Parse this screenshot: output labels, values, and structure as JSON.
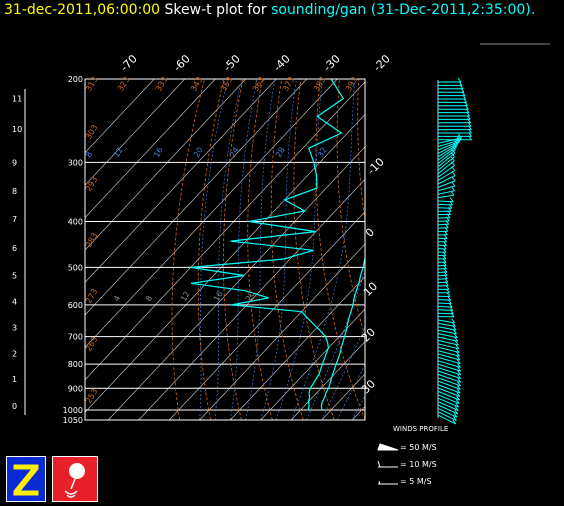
{
  "header": {
    "date": "31-dec-2011,06:00:00",
    "middle": "Skew-t plot for",
    "site": "sounding/gan",
    "obs_time": "(31-Dec-2011,2:35:00)."
  },
  "legend": {
    "title": "WINDS PROFILE",
    "items": [
      "= 50 M/S",
      "= 10 M/S",
      "= 5 M/S"
    ]
  },
  "chart_data": {
    "type": "skew-t",
    "pressure_levels": [
      "200",
      "300",
      "400",
      "500",
      "600",
      "700",
      "800",
      "900",
      "1000",
      "1050"
    ],
    "height_ticks": [
      "11",
      "10",
      "9",
      "8",
      "7",
      "6",
      "5",
      "4",
      "3",
      "2",
      "1",
      "0"
    ],
    "temperature_ticks_top": [
      "-70",
      "-60",
      "-50",
      "-40",
      "-30",
      "-20"
    ],
    "temperature_ticks_right": [
      "-10",
      "0",
      "10",
      "20",
      "30"
    ],
    "dry_adiabat_labels": [
      "313",
      "323",
      "333",
      "343",
      "353",
      "363",
      "373",
      "383",
      "393",
      "303",
      "293",
      "283",
      "273",
      "263",
      "253"
    ],
    "mixing_ratio_labels": [
      "8",
      "12",
      "16",
      "20",
      "24",
      "28",
      "32",
      "4",
      "8",
      "12",
      "16",
      "20"
    ],
    "temperature_profile": {
      "p": [
        1000,
        980,
        960,
        940,
        920,
        900,
        880,
        860,
        840,
        820,
        800,
        780,
        760,
        740,
        720,
        700,
        680,
        660,
        640,
        620,
        600,
        580,
        560,
        540,
        520,
        500,
        480,
        460,
        440,
        420,
        400,
        380,
        360,
        340,
        320,
        300,
        280,
        260,
        240,
        220,
        200
      ],
      "t": [
        27,
        25.5,
        24.5,
        24,
        23,
        22.5,
        21.5,
        20.5,
        19.5,
        18.5,
        17.5,
        16.5,
        15.5,
        14.2,
        13,
        11.8,
        10.5,
        9,
        7.5,
        6.2,
        4.8,
        3,
        1.5,
        0,
        -1.8,
        -3.5,
        -5.5,
        -7.5,
        -9.5,
        -11.5,
        -14,
        -16.5,
        -19.5,
        -22.5,
        -26,
        -29.5,
        -33.5,
        -38,
        -42.5,
        -48,
        -54
      ]
    },
    "dewpoint_profile": {
      "p": [
        1000,
        980,
        960,
        940,
        920,
        900,
        880,
        860,
        840,
        820,
        800,
        780,
        760,
        740,
        720,
        700,
        680,
        660,
        640,
        620,
        600,
        580,
        560,
        540,
        520,
        500,
        480,
        460,
        440,
        420,
        400,
        380,
        360,
        340,
        320,
        300,
        280,
        260,
        240,
        220,
        200
      ],
      "td": [
        22.5,
        21.5,
        20,
        19,
        17.5,
        16.5,
        16,
        15.5,
        15,
        14,
        13,
        12,
        11,
        10,
        8,
        5.5,
        2,
        -2,
        -6,
        -10,
        -35,
        -25,
        -35,
        -55,
        -40,
        -60,
        -32,
        -25,
        -55,
        -30,
        -55,
        -40,
        -50,
        -43,
        -47,
        -52,
        -58,
        -52,
        -65,
        -62,
        -72
      ]
    },
    "winds": {
      "label": "WINDS PROFILE"
    }
  }
}
